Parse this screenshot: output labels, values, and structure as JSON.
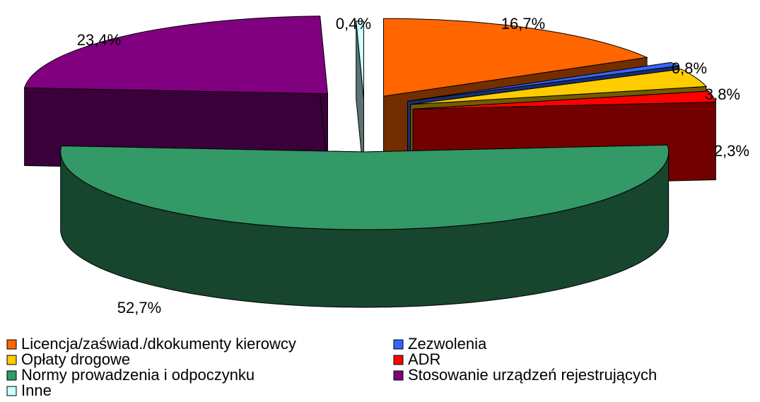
{
  "chart_data": {
    "type": "pie",
    "three_d": true,
    "categories": [
      "Licencja/zaświad./dkokumenty kierowcy",
      "Zezwolenia",
      "Opłaty drogowe",
      "ADR",
      "Normy prowadzenia i odpoczynku",
      "Stosowanie urządzeń rejestrujących",
      "Inne"
    ],
    "values": [
      16.7,
      0.8,
      3.8,
      2.3,
      52.7,
      23.4,
      0.4
    ],
    "value_labels": [
      "16,7%",
      "0,8%",
      "3,8%",
      "2,3%",
      "52,7%",
      "23,4%",
      "0,4%"
    ],
    "colors": [
      "#FF6600",
      "#3366FF",
      "#FFCC00",
      "#FF0000",
      "#339966",
      "#800080",
      "#CCFFFF"
    ],
    "legend": "bottom"
  }
}
